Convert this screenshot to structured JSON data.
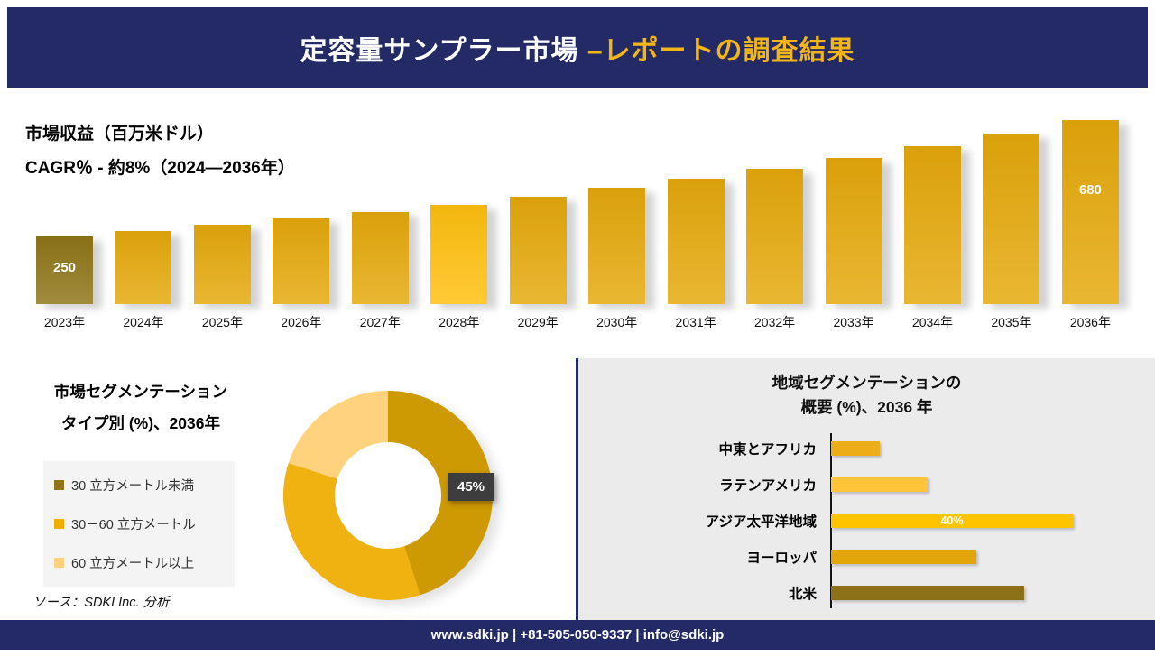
{
  "header": {
    "title_main": "定容量サンプラー市場 ",
    "title_accent": "–レポートの調査結果"
  },
  "revenue": {
    "label_line1": "市場収益（百万米ドル）",
    "label_line2": "CAGR％ - 約8%（2024―2036年）"
  },
  "segmentation": {
    "title_line1": "市場セグメンテーション",
    "title_line2": "タイプ別 (%)、2036年",
    "callout": "45%",
    "source": "ソース：SDKI Inc. 分析"
  },
  "regional": {
    "title_line1": "地域セグメンテーションの",
    "title_line2": "概要 (%)、2036 年"
  },
  "footer": {
    "text": "www.sdki.jp | +81-505-050-9337 | info@sdki.jp"
  },
  "colors": {
    "navy": "#232A66",
    "accent_yellow": "#F2B616",
    "gold": "#E5A90B",
    "gold_dark": "#8F7518",
    "gold_bright": "#FFC00E",
    "gold_light": "#FFD07E",
    "panel_gray": "#EBEBEB",
    "callout_gray": "#3D3D3D"
  },
  "chart_data": [
    {
      "type": "bar",
      "title": "市場収益（百万米ドル）",
      "subtitle": "CAGR％ - 約8%（2024―2036年）",
      "categories": [
        "2023年",
        "2024年",
        "2025年",
        "2026年",
        "2027年",
        "2028年",
        "2029年",
        "2030年",
        "2031年",
        "2032年",
        "2033年",
        "2034年",
        "2035年",
        "2036年"
      ],
      "values": [
        250,
        270,
        292,
        315,
        340,
        367,
        397,
        429,
        463,
        500,
        540,
        583,
        630,
        680
      ],
      "bar_colors": [
        "#8F7518",
        "#E5A90B",
        "#E5A90B",
        "#E5A90B",
        "#E5A90B",
        "#FFC00E",
        "#E5A90B",
        "#E5A90B",
        "#E5A90B",
        "#E5A90B",
        "#E5A90B",
        "#E5A90B",
        "#E5A90B",
        "#E5A90B"
      ],
      "value_labels": {
        "first": "250",
        "last": "680"
      },
      "xlabel": "",
      "ylabel": "市場収益（百万米ドル）",
      "ylim": [
        0,
        700
      ],
      "grid": false,
      "legend": "none"
    },
    {
      "type": "pie",
      "subtype": "donut",
      "title": "市場セグメンテーション タイプ別 (%)、2036年",
      "labels": [
        "30 立方メートル未満",
        "30－60 立方メートル",
        "60 立方メートル以上"
      ],
      "values": [
        45,
        35,
        20
      ],
      "slice_colors": [
        "#CE9A03",
        "#F0B210",
        "#FFD27D"
      ],
      "legend_colors": [
        "#8F7518",
        "#EFAF00",
        "#FFD07E"
      ],
      "callout_label": "45%",
      "legend_position": "left"
    },
    {
      "type": "bar",
      "orientation": "horizontal",
      "title": "地域セグメンテーションの 概要 (%)、2036 年",
      "categories": [
        "中東とアフリカ",
        "ラテンアメリカ",
        "アジア太平洋地域",
        "ヨーロッパ",
        "北米"
      ],
      "values": [
        8,
        16,
        40,
        24,
        32
      ],
      "bar_colors": [
        "#EDAD18",
        "#FFC53A",
        "#FFC400",
        "#E2A50A",
        "#8C7118"
      ],
      "value_label": {
        "index": 2,
        "text": "40%"
      },
      "xlim": [
        0,
        42
      ],
      "grid": false
    }
  ]
}
